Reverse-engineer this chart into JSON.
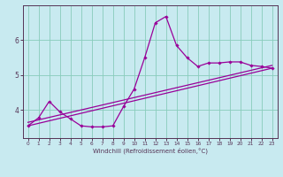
{
  "xlabel": "Windchill (Refroidissement éolien,°C)",
  "background_color": "#c8eaf0",
  "grid_color": "#88ccbb",
  "line_color": "#990099",
  "spine_color": "#553355",
  "xlim": [
    -0.5,
    23.5
  ],
  "ylim": [
    3.2,
    7.0
  ],
  "yticks": [
    4,
    5,
    6
  ],
  "xticks": [
    0,
    1,
    2,
    3,
    4,
    5,
    6,
    7,
    8,
    9,
    10,
    11,
    12,
    13,
    14,
    15,
    16,
    17,
    18,
    19,
    20,
    21,
    22,
    23
  ],
  "curve1_x": [
    0,
    1,
    2,
    3,
    4,
    5,
    6,
    7,
    8,
    9,
    10,
    11,
    12,
    13,
    14,
    15,
    16,
    17,
    18,
    19,
    20,
    21,
    22,
    23
  ],
  "curve1_y": [
    3.55,
    3.78,
    4.25,
    3.95,
    3.75,
    3.55,
    3.52,
    3.52,
    3.55,
    4.1,
    4.6,
    5.5,
    6.5,
    6.68,
    5.85,
    5.5,
    5.25,
    5.35,
    5.35,
    5.38,
    5.38,
    5.28,
    5.25,
    5.2
  ],
  "curve2_x": [
    0,
    23
  ],
  "curve2_y": [
    3.55,
    5.2
  ],
  "curve3_x": [
    0,
    23
  ],
  "curve3_y": [
    3.65,
    5.28
  ]
}
